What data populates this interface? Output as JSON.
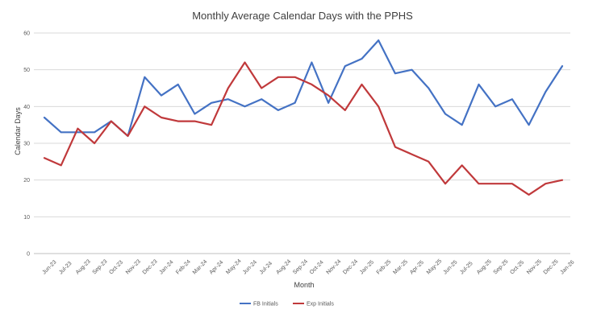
{
  "chart_data": {
    "type": "line",
    "title": "Monthly Average Calendar Days with the PPHS",
    "xlabel": "Month",
    "ylabel": "Calendar Days",
    "ylim": [
      0,
      60
    ],
    "yticks": [
      0,
      10,
      20,
      30,
      40,
      50,
      60
    ],
    "grid": true,
    "legend_position": "bottom",
    "categories": [
      "Jun-23",
      "Jul-23",
      "Aug-23",
      "Sep-23",
      "Oct-23",
      "Nov-23",
      "Dec-23",
      "Jan-24",
      "Feb-24",
      "Mar-24",
      "Apr-24",
      "May-24",
      "Jun-24",
      "Jul-24",
      "Aug-24",
      "Sep-24",
      "Oct-24",
      "Nov-24",
      "Dec-24",
      "Jan-25",
      "Feb-25",
      "Mar-25",
      "Apr-25",
      "May-25",
      "Jun-25",
      "Jul-25",
      "Aug-25",
      "Sep-25",
      "Oct-25",
      "Nov-25",
      "Dec-25",
      "Jan-26"
    ],
    "series": [
      {
        "name": "FB Initials",
        "color": "#4472C4",
        "values": [
          37,
          33,
          33,
          33,
          36,
          32,
          48,
          43,
          46,
          38,
          41,
          42,
          40,
          42,
          39,
          41,
          52,
          41,
          51,
          53,
          58,
          49,
          50,
          45,
          38,
          35,
          46,
          40,
          42,
          35,
          44,
          51
        ]
      },
      {
        "name": "Exp Initials",
        "color": "#C0393B",
        "values": [
          26,
          24,
          34,
          30,
          36,
          32,
          40,
          37,
          36,
          36,
          35,
          45,
          52,
          45,
          48,
          48,
          46,
          43,
          39,
          46,
          40,
          29,
          27,
          25,
          19,
          24,
          19,
          19,
          19,
          16,
          19,
          20
        ]
      }
    ]
  }
}
